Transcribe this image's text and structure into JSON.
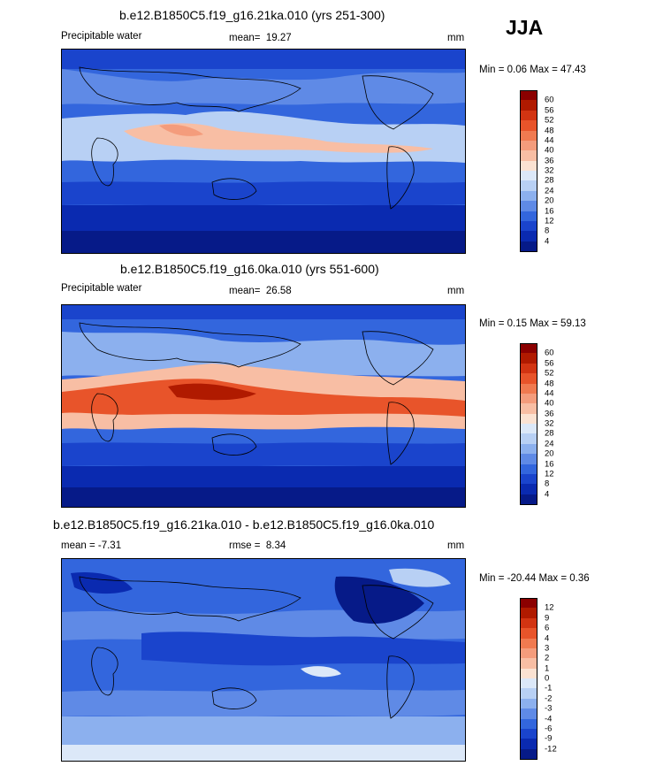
{
  "season": "JJA",
  "panels": [
    {
      "title": "b.e12.B1850C5.f19_g16.21ka.010 (yrs 251-300)",
      "left_label": "Precipitable water",
      "stat_label": "mean=",
      "stat_value": "19.27",
      "units": "mm",
      "minmax": "Min =   0.06 Max =  47.43",
      "colorbar": {
        "labels": [
          "60",
          "56",
          "52",
          "48",
          "44",
          "40",
          "36",
          "32",
          "28",
          "24",
          "20",
          "16",
          "12",
          "8",
          "4"
        ],
        "colors": [
          "#8b0000",
          "#b01a00",
          "#d23412",
          "#e8542a",
          "#f07a50",
          "#f49c7c",
          "#f8bea4",
          "#fbe2d2",
          "#dce8f8",
          "#b8d0f4",
          "#8cb0ee",
          "#5f8ae6",
          "#3366dd",
          "#1a44cc",
          "#0a2ab0",
          "#061a88"
        ]
      }
    },
    {
      "title": "b.e12.B1850C5.f19_g16.0ka.010 (yrs 551-600)",
      "left_label": "Precipitable water",
      "stat_label": "mean=",
      "stat_value": "26.58",
      "units": "mm",
      "minmax": "Min =   0.15 Max =  59.13",
      "colorbar": {
        "labels": [
          "60",
          "56",
          "52",
          "48",
          "44",
          "40",
          "36",
          "32",
          "28",
          "24",
          "20",
          "16",
          "12",
          "8",
          "4"
        ],
        "colors": [
          "#8b0000",
          "#b01a00",
          "#d23412",
          "#e8542a",
          "#f07a50",
          "#f49c7c",
          "#f8bea4",
          "#fbe2d2",
          "#dce8f8",
          "#b8d0f4",
          "#8cb0ee",
          "#5f8ae6",
          "#3366dd",
          "#1a44cc",
          "#0a2ab0",
          "#061a88"
        ]
      }
    },
    {
      "title": "b.e12.B1850C5.f19_g16.21ka.010 - b.e12.B1850C5.f19_g16.0ka.010",
      "left_label": "mean =  -7.31",
      "stat_label": "rmse =",
      "stat_value": "8.34",
      "units": "mm",
      "minmax": "Min = -20.44 Max =   0.36",
      "colorbar": {
        "labels": [
          "12",
          "9",
          "6",
          "4",
          "3",
          "2",
          "1",
          "0",
          "-1",
          "-2",
          "-3",
          "-4",
          "-6",
          "-9",
          "-12"
        ],
        "colors": [
          "#8b0000",
          "#b01a00",
          "#d23412",
          "#e8542a",
          "#f07a50",
          "#f49c7c",
          "#f8bea4",
          "#fbe2d2",
          "#dce8f8",
          "#b8d0f4",
          "#8cb0ee",
          "#5f8ae6",
          "#3366dd",
          "#1a44cc",
          "#0a2ab0",
          "#061a88"
        ]
      }
    }
  ],
  "chart_data": [
    {
      "type": "heatmap",
      "title": "b.e12.B1850C5.f19_g16.21ka.010 (yrs 251-300)",
      "field": "Precipitable water",
      "units": "mm",
      "mean": 19.27,
      "min": 0.06,
      "max": 47.43,
      "contour_levels": [
        4,
        8,
        12,
        16,
        20,
        24,
        28,
        32,
        36,
        40,
        44,
        48,
        52,
        56,
        60
      ]
    },
    {
      "type": "heatmap",
      "title": "b.e12.B1850C5.f19_g16.0ka.010 (yrs 551-600)",
      "field": "Precipitable water",
      "units": "mm",
      "mean": 26.58,
      "min": 0.15,
      "max": 59.13,
      "contour_levels": [
        4,
        8,
        12,
        16,
        20,
        24,
        28,
        32,
        36,
        40,
        44,
        48,
        52,
        56,
        60
      ]
    },
    {
      "type": "heatmap",
      "title": "b.e12.B1850C5.f19_g16.21ka.010 - b.e12.B1850C5.f19_g16.0ka.010",
      "units": "mm",
      "mean": -7.31,
      "rmse": 8.34,
      "min": -20.44,
      "max": 0.36,
      "contour_levels": [
        -12,
        -9,
        -6,
        -4,
        -3,
        -2,
        -1,
        0,
        1,
        2,
        3,
        4,
        6,
        9,
        12
      ]
    }
  ]
}
